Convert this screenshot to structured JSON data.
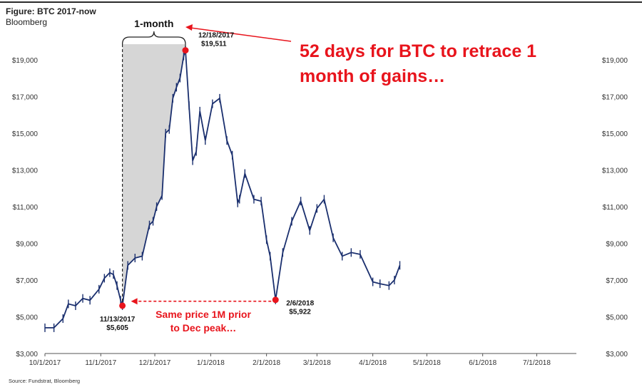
{
  "figure": {
    "title": "Figure: BTC 2017-now",
    "subtitle": "Bloomberg",
    "source": "Source: Fundstrat, Bloomberg"
  },
  "chart_data": {
    "type": "line",
    "title": "Figure: BTC 2017-now",
    "subtitle": "Bloomberg",
    "xlabel": "",
    "ylabel": "",
    "ylim": [
      3000,
      20000
    ],
    "xlim": [
      "10/1/2017",
      "7/23/2018"
    ],
    "legend": "none",
    "grid": false,
    "x_tick_labels": [
      "10/1/2017",
      "11/1/2017",
      "12/1/2017",
      "1/1/2018",
      "2/1/2018",
      "3/1/2018",
      "4/1/2018",
      "5/1/2018",
      "6/1/2018",
      "7/1/2018"
    ],
    "y_tick_labels": [
      "$3,000",
      "$5,000",
      "$7,000",
      "$9,000",
      "$11,000",
      "$13,000",
      "$15,000",
      "$17,000",
      "$19,000"
    ],
    "y_tick_values": [
      3000,
      5000,
      7000,
      9000,
      11000,
      13000,
      15000,
      17000,
      19000
    ],
    "series": [
      {
        "name": "",
        "color": "#1a2f6e",
        "x": [
          "10/1/2017",
          "10/6/2017",
          "10/11/2017",
          "10/14/2017",
          "10/18/2017",
          "10/22/2017",
          "10/26/2017",
          "10/31/2017",
          "11/3/2017",
          "11/6/2017",
          "11/8/2017",
          "11/10/2017",
          "11/12/2017",
          "11/13/2017",
          "11/16/2017",
          "11/20/2017",
          "11/24/2017",
          "11/28/2017",
          "11/30/2017",
          "12/2/2017",
          "12/5/2017",
          "12/7/2017",
          "12/9/2017",
          "12/11/2017",
          "12/13/2017",
          "12/15/2017",
          "12/17/2017",
          "12/18/2017",
          "12/20/2017",
          "12/22/2017",
          "12/24/2017",
          "12/26/2017",
          "12/29/2017",
          "1/2/2018",
          "1/6/2018",
          "1/10/2018",
          "1/13/2018",
          "1/16/2018",
          "1/17/2018",
          "1/20/2018",
          "1/25/2018",
          "1/29/2018",
          "2/1/2018",
          "2/3/2018",
          "2/6/2018",
          "2/10/2018",
          "2/15/2018",
          "2/20/2018",
          "2/25/2018",
          "3/1/2018",
          "3/5/2018",
          "3/10/2018",
          "3/15/2018",
          "3/20/2018",
          "3/25/2018",
          "4/1/2018",
          "4/5/2018",
          "4/10/2018",
          "4/13/2018",
          "4/16/2018"
        ],
        "values": [
          4400,
          4400,
          4900,
          5700,
          5600,
          6000,
          5900,
          6500,
          7100,
          7400,
          7300,
          6700,
          5900,
          5605,
          7800,
          8200,
          8300,
          10000,
          10200,
          11000,
          11600,
          15000,
          15200,
          16900,
          17500,
          18000,
          19200,
          19511,
          16500,
          13500,
          14000,
          16200,
          14600,
          16600,
          16900,
          14600,
          13800,
          11200,
          11400,
          12800,
          11400,
          11300,
          9200,
          8300,
          5922,
          8500,
          10200,
          11300,
          9700,
          10900,
          11400,
          9300,
          8300,
          8500,
          8400,
          6900,
          6800,
          6700,
          7000,
          7800
        ]
      }
    ],
    "annotations": [
      {
        "text": "12/18/2017",
        "value_text": "$19,511",
        "x": "12/18/2017",
        "y": 19511
      },
      {
        "text": "11/13/2017",
        "value_text": "$5,605",
        "x": "11/13/2017",
        "y": 5605
      },
      {
        "text": "2/6/2018",
        "value_text": "$5,922",
        "x": "2/6/2018",
        "y": 5922
      },
      {
        "text": "1-month",
        "type": "bracket",
        "from": "11/13/2017",
        "to": "12/18/2017"
      }
    ]
  },
  "callouts": {
    "headline_line1": "52 days for BTC to retrace 1",
    "headline_line2": "month of gains…",
    "same_price_line1": "Same price 1M prior",
    "same_price_line2": "to Dec peak…",
    "one_month_label": "1-month"
  },
  "colors": {
    "series": "#1a2f6e",
    "accent_red": "#e8141c",
    "shade": "#d6d6d6",
    "axis": "#555555"
  }
}
